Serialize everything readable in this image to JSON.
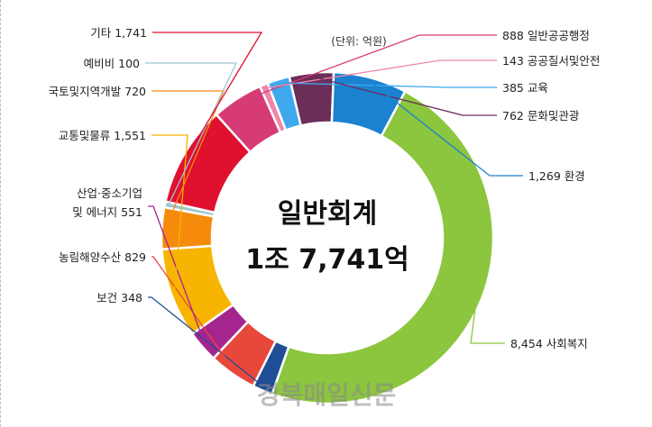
{
  "chart_data": {
    "type": "pie",
    "donut": true,
    "unit_note": "(단위: 억원)",
    "center_title": "일반회계",
    "center_total": "1조 7,741억",
    "slices": [
      {
        "name": "일반공공행정",
        "value": 888,
        "label": "888 일반공공행정",
        "color": "#d63b76"
      },
      {
        "name": "공공질서및안전",
        "value": 143,
        "label": "143 공공질서및안전",
        "color": "#ee86a8"
      },
      {
        "name": "교육",
        "value": 385,
        "label": "385 교육",
        "color": "#3fa9ee"
      },
      {
        "name": "문화및관광",
        "value": 762,
        "label": "762 문화및관광",
        "color": "#6b2e58"
      },
      {
        "name": "환경",
        "value": 1269,
        "label": "1,269 환경",
        "color": "#1a82cf"
      },
      {
        "name": "사회복지",
        "value": 8454,
        "label": "8,454 사회복지",
        "color": "#8cc63f"
      },
      {
        "name": "보건",
        "value": 348,
        "label": "보건 348",
        "color": "#1f4e96"
      },
      {
        "name": "농림해양수산",
        "value": 829,
        "label": "농림해양수산 829",
        "color": "#e8483b"
      },
      {
        "name": "산업·중소기업 및 에너지",
        "value": 551,
        "label": "산업·중소기업",
        "label2": "및 에너지 551",
        "color": "#a5258f"
      },
      {
        "name": "교통및물류",
        "value": 1551,
        "label": "교통및물류 1,551",
        "color": "#f7b400"
      },
      {
        "name": "국토및지역개발",
        "value": 720,
        "label": "국토및지역개발 720",
        "color": "#f58a0b"
      },
      {
        "name": "예비비",
        "value": 100,
        "label": "예비비 100",
        "color": "#9ec7cf"
      },
      {
        "name": "기타",
        "value": 1741,
        "label": "기타 1,741",
        "color": "#e0102f"
      }
    ]
  },
  "watermark": "경북매일신문"
}
